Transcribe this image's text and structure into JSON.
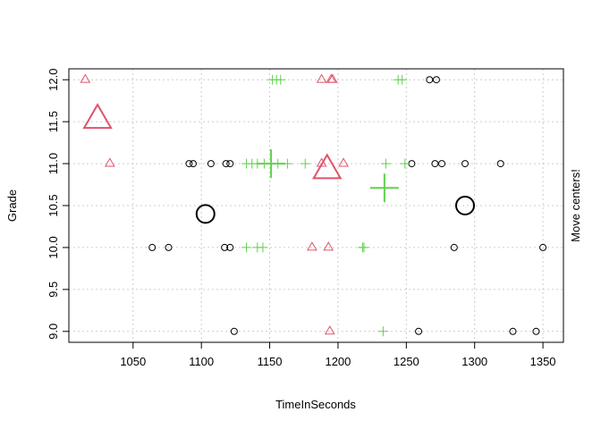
{
  "chart_data": {
    "type": "scatter",
    "title": "",
    "xlabel": "TimeInSeconds",
    "ylabel": "Grade",
    "right_label": "Move centers!",
    "xlim": [
      1003,
      1365
    ],
    "ylim": [
      8.87,
      12.13
    ],
    "x_ticks": [
      1050,
      1100,
      1150,
      1200,
      1250,
      1300,
      1350
    ],
    "y_ticks": [
      9.0,
      9.5,
      10.0,
      10.5,
      11.0,
      11.5,
      12.0
    ],
    "grid": true,
    "colors": {
      "cluster1": "#000000",
      "cluster2": "#DF536B",
      "cluster3": "#61D04F",
      "grid": "#cccccc"
    },
    "series": [
      {
        "marker": "circle",
        "color": "#000000",
        "points": [
          [
            1124,
            9.0
          ],
          [
            1259,
            9.0
          ],
          [
            1328,
            9.0
          ],
          [
            1345,
            9.0
          ],
          [
            1064,
            10.0
          ],
          [
            1076,
            10.0
          ],
          [
            1117,
            10.0
          ],
          [
            1121,
            10.0
          ],
          [
            1285,
            10.0
          ],
          [
            1350,
            10.0
          ],
          [
            1091,
            11.0
          ],
          [
            1094,
            11.0
          ],
          [
            1107,
            11.0
          ],
          [
            1118,
            11.0
          ],
          [
            1121,
            11.0
          ],
          [
            1254,
            11.0
          ],
          [
            1271,
            11.0
          ],
          [
            1276,
            11.0
          ],
          [
            1293,
            11.0
          ],
          [
            1319,
            11.0
          ],
          [
            1267,
            12.0
          ],
          [
            1272,
            12.0
          ]
        ],
        "center": [
          1103,
          10.4
        ]
      },
      {
        "marker": "triangle",
        "color": "#DF536B",
        "points": [
          [
            1015,
            12.0
          ],
          [
            1188,
            12.0
          ],
          [
            1195,
            12.0
          ],
          [
            1196,
            12.0
          ],
          [
            1033,
            11.0
          ],
          [
            1188,
            11.0
          ],
          [
            1204,
            11.0
          ],
          [
            1181,
            10.0
          ],
          [
            1193,
            10.0
          ],
          [
            1194,
            9.0
          ]
        ],
        "center": [
          1024,
          11.52
        ],
        "center2": [
          1192,
          10.92
        ]
      },
      {
        "marker": "plus",
        "color": "#61D04F",
        "points": [
          [
            1152,
            12.0
          ],
          [
            1155,
            12.0
          ],
          [
            1158,
            12.0
          ],
          [
            1244,
            12.0
          ],
          [
            1247,
            12.0
          ],
          [
            1133,
            11.0
          ],
          [
            1137,
            11.0
          ],
          [
            1141,
            11.0
          ],
          [
            1146,
            11.0
          ],
          [
            1156,
            11.0
          ],
          [
            1163,
            11.0
          ],
          [
            1176,
            11.0
          ],
          [
            1235,
            11.0
          ],
          [
            1249,
            11.0
          ],
          [
            1133,
            10.0
          ],
          [
            1141,
            10.0
          ],
          [
            1145,
            10.0
          ],
          [
            1218,
            10.0
          ],
          [
            1219,
            10.0
          ],
          [
            1233,
            9.0
          ]
        ],
        "center": [
          1151,
          11.0
        ],
        "center2": [
          1234,
          10.71
        ]
      }
    ],
    "big_black_center2": [
      1293,
      10.5
    ]
  }
}
